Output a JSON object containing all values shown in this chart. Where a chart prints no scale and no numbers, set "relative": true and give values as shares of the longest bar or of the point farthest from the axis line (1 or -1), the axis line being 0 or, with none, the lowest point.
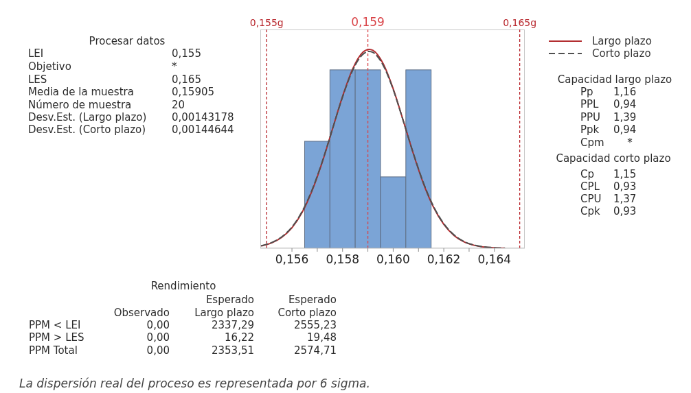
{
  "chart_data": {
    "type": "histogram",
    "relative": true,
    "bins": [
      0.1565,
      0.1575,
      0.1585,
      0.1595,
      0.1605,
      0.1615
    ],
    "values": [
      0.538,
      0.897,
      0.897,
      0.359,
      0.897
    ],
    "color": "#7ba4d6",
    "series": [
      {
        "name": "Largo plazo",
        "type": "line",
        "color": "#b22d30",
        "line_style": "solid",
        "x": [
          0.1548,
          0.1552,
          0.1556,
          0.156,
          0.1564,
          0.1568,
          0.1572,
          0.1576,
          0.158,
          0.1584,
          0.1588,
          0.15905,
          0.1592,
          0.1596,
          0.16,
          0.1604,
          0.1608,
          0.1612,
          0.1616,
          0.162,
          0.1624,
          0.1628,
          0.1632,
          0.1636,
          0.164,
          0.1644
        ],
        "values": [
          0.012,
          0.027,
          0.055,
          0.103,
          0.18,
          0.291,
          0.434,
          0.599,
          0.764,
          0.902,
          0.985,
          1.0,
          0.995,
          0.929,
          0.802,
          0.641,
          0.474,
          0.324,
          0.205,
          0.12,
          0.065,
          0.032,
          0.015,
          0.006,
          0.003,
          0.001
        ]
      },
      {
        "name": "Corto plazo",
        "type": "line",
        "color": "#505050",
        "line_style": "dashed",
        "x": [
          0.1548,
          0.1552,
          0.1556,
          0.156,
          0.1564,
          0.1568,
          0.1572,
          0.1576,
          0.158,
          0.1584,
          0.1588,
          0.15905,
          0.1592,
          0.1596,
          0.16,
          0.1604,
          0.1608,
          0.1612,
          0.1616,
          0.162,
          0.1624,
          0.1628,
          0.1632,
          0.1636,
          0.164,
          0.1644
        ],
        "values": [
          0.013,
          0.029,
          0.058,
          0.107,
          0.185,
          0.295,
          0.437,
          0.599,
          0.761,
          0.895,
          0.975,
          0.99,
          0.985,
          0.921,
          0.798,
          0.64,
          0.476,
          0.328,
          0.209,
          0.124,
          0.068,
          0.034,
          0.016,
          0.007,
          0.003,
          0.001
        ]
      }
    ],
    "marker": "none",
    "xlim": [
      0.15475,
      0.1652
    ],
    "xticks": [
      {
        "value": 0.156,
        "label": "0,156"
      },
      {
        "value": 0.157,
        "label": null
      },
      {
        "value": 0.158,
        "label": "0,158"
      },
      {
        "value": 0.159,
        "label": null
      },
      {
        "value": 0.16,
        "label": "0,160"
      },
      {
        "value": 0.161,
        "label": null
      },
      {
        "value": 0.162,
        "label": "0,162"
      },
      {
        "value": 0.163,
        "label": null
      },
      {
        "value": 0.164,
        "label": "0,164"
      }
    ],
    "ref_lines": [
      {
        "axis": "x",
        "value": 0.155,
        "label": "0,155g",
        "color": "#b8262c",
        "line_style": "dashed"
      },
      {
        "axis": "x",
        "value": 0.159,
        "label": "0,159",
        "color": "#d94448",
        "line_style": "dashed"
      },
      {
        "axis": "x",
        "value": 0.165,
        "label": "0,165g",
        "color": "#b8262c",
        "line_style": "dashed"
      }
    ],
    "legend": "top right",
    "annotations": [
      "Procesar datos",
      "LEI",
      "0,155",
      "Objetivo",
      "*",
      "LES",
      "0,165",
      "Media de la muestra",
      "0,15905",
      "Número de muestra",
      "20",
      "Desv.Est. (Largo plazo)",
      "0,00143178",
      "Desv.Est. (Corto plazo)",
      "0,00144644",
      "Capacidad largo plazo",
      "Pp",
      "1,16",
      "PPL",
      "0,94",
      "PPU",
      "1,39",
      "Ppk",
      "0,94",
      "Cpm",
      "*",
      "Capacidad corto plazo",
      "Cp",
      "1,15",
      "CPL",
      "0,93",
      "CPU",
      "1,37",
      "Cpk",
      "0,93",
      "Rendimiento",
      "Esperado",
      "Esperado",
      "Observado",
      "Largo plazo",
      "Corto plazo",
      "PPM < LEI",
      "0,00",
      "2337,29",
      "2555,23",
      "PPM > LES",
      "0,00",
      "16,22",
      "19,48",
      "PPM Total",
      "0,00",
      "2353,51",
      "2574,71",
      "La dispersión real del proceso es representada por 6 sigma."
    ]
  }
}
